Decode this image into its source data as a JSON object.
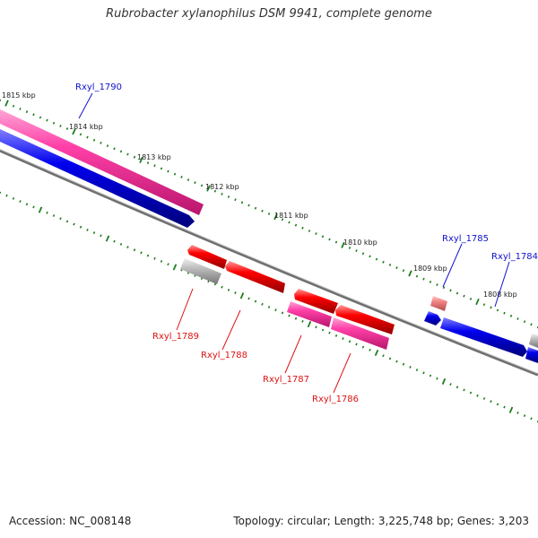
{
  "title": "Rubrobacter xylanophilus DSM 9941, complete genome",
  "footer": {
    "accession": "Accession: NC_008148",
    "summary": "Topology: circular; Length: 3,225,748 bp; Genes: 3,203"
  },
  "colors": {
    "backbone": "#808080",
    "cds": "#ff0000",
    "cds_blue": "#0000ee",
    "rna": "#ff3ea5",
    "pseudo": "#bbbbbb",
    "faded": "#f08080",
    "tick": "#1b7d1b",
    "label_red": "#dd1111",
    "label_blue": "#1111cc"
  },
  "scale": {
    "unit": "kbp",
    "major_ticks": [
      {
        "kbp": 1815,
        "label": "1815 kbp"
      },
      {
        "kbp": 1814,
        "label": "1814 kbp"
      },
      {
        "kbp": 1813,
        "label": "1813 kbp"
      },
      {
        "kbp": 1812,
        "label": "1812 kbp"
      },
      {
        "kbp": 1811,
        "label": "1811 kbp"
      },
      {
        "kbp": 1810,
        "label": "1810 kbp"
      },
      {
        "kbp": 1809,
        "label": "1809 kbp"
      },
      {
        "kbp": 1808,
        "label": "1808 kbp"
      }
    ]
  },
  "labels": [
    {
      "text": "Rxyl_1790",
      "color": "blue"
    },
    {
      "text": "Rxyl_1785",
      "color": "blue"
    },
    {
      "text": "Rxyl_1784",
      "color": "blue"
    },
    {
      "text": "Rxyl_1789",
      "color": "red"
    },
    {
      "text": "Rxyl_1788",
      "color": "red"
    },
    {
      "text": "Rxyl_1787",
      "color": "red"
    },
    {
      "text": "Rxyl_1786",
      "color": "red"
    }
  ]
}
